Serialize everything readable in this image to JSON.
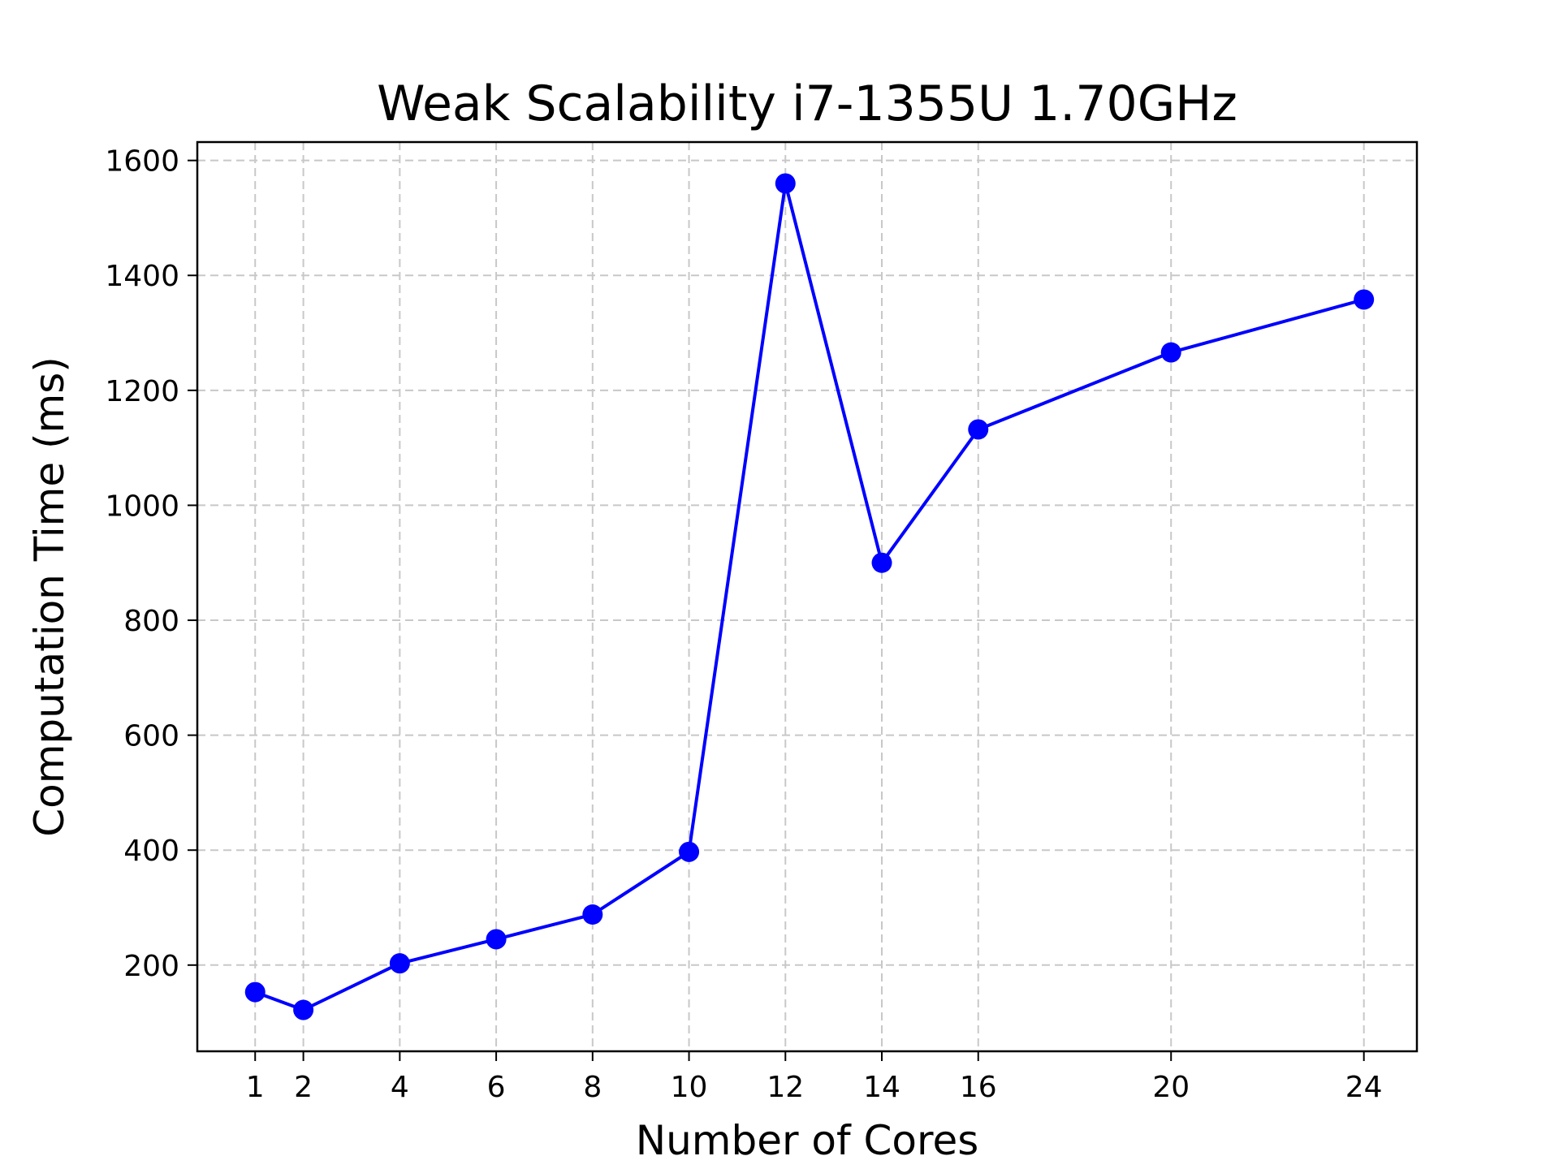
{
  "chart_data": {
    "type": "line",
    "title": "Weak Scalability i7-1355U 1.70GHz",
    "xlabel": "Number of Cores",
    "ylabel": "Computation Time (ms)",
    "xlim": [
      -0.2,
      25.1
    ],
    "ylim": [
      50,
      1632
    ],
    "x_ticks": [
      1,
      2,
      4,
      6,
      8,
      10,
      12,
      14,
      16,
      20,
      24
    ],
    "y_ticks": [
      200,
      400,
      600,
      800,
      1000,
      1200,
      1400,
      1600
    ],
    "grid": true,
    "series": [
      {
        "color": "#0000ff",
        "marker": "circle",
        "x": [
          1,
          2,
          4,
          6,
          8,
          10,
          12,
          14,
          16,
          20,
          24
        ],
        "y": [
          153,
          122,
          203,
          245,
          288,
          397,
          1560,
          900,
          1132,
          1266,
          1358
        ]
      }
    ]
  }
}
